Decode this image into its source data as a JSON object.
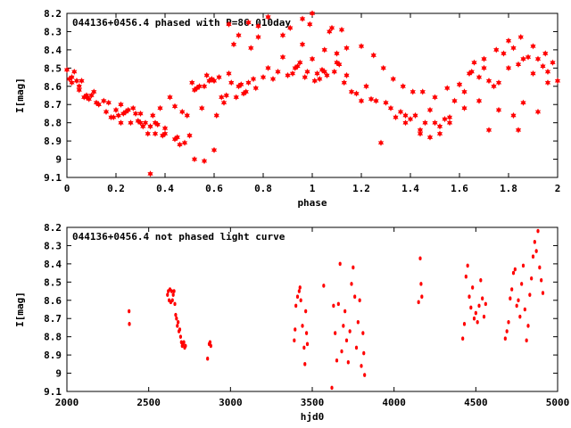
{
  "chart_data": [
    {
      "type": "scatter",
      "title": "044136+0456.4 phased with P=86.010day",
      "xlabel": "phase",
      "ylabel": "I[mag]",
      "xlim": [
        0,
        2
      ],
      "ylim": [
        8.2,
        9.1
      ],
      "y_inverted": true,
      "grid": false,
      "marker_color": "#ff0000",
      "marker": "filled-star",
      "x_ticks": [
        "0",
        "0.2",
        "0.4",
        "0.6",
        "0.8",
        "1",
        "1.2",
        "1.4",
        "1.6",
        "1.8",
        "2"
      ],
      "y_ticks": [
        "8.2",
        "8.3",
        "8.4",
        "8.5",
        "8.6",
        "8.7",
        "8.8",
        "8.9",
        "9",
        "9.1"
      ],
      "series": [
        {
          "x": [
            0.0,
            0.01,
            0.02,
            0.03,
            0.04,
            0.05,
            0.06,
            0.07,
            0.08,
            0.09,
            0.1,
            0.11,
            0.13,
            0.15,
            0.17,
            0.18,
            0.19,
            0.2,
            0.21,
            0.22,
            0.23,
            0.24,
            0.25,
            0.26,
            0.27,
            0.28,
            0.29,
            0.3,
            0.31,
            0.32,
            0.33,
            0.34,
            0.35,
            0.36,
            0.37,
            0.38,
            0.39,
            0.4,
            0.42,
            0.44,
            0.45,
            0.46,
            0.47,
            0.48,
            0.49,
            0.5,
            0.51,
            0.52,
            0.53,
            0.54,
            0.55,
            0.56,
            0.57,
            0.58,
            0.59,
            0.6,
            0.61,
            0.62,
            0.63,
            0.64,
            0.65,
            0.66,
            0.67,
            0.68,
            0.69,
            0.7,
            0.71,
            0.72,
            0.73,
            0.74,
            0.75,
            0.76,
            0.77,
            0.78,
            0.8,
            0.82,
            0.84,
            0.86,
            0.88,
            0.9,
            0.91,
            0.92,
            0.93,
            0.94,
            0.95,
            0.96,
            0.97,
            0.98,
            0.99,
            1.0,
            1.01,
            1.02,
            1.03,
            1.04,
            1.05,
            1.06,
            1.07,
            1.08,
            1.09,
            1.1,
            1.11,
            1.12,
            1.13,
            1.14,
            1.16,
            1.18,
            1.2,
            1.22,
            1.24,
            1.26,
            1.28,
            1.3,
            1.32,
            1.34,
            1.36,
            1.38,
            1.4,
            1.42,
            1.44,
            1.46,
            1.48,
            1.5,
            1.52,
            1.54,
            1.56,
            1.58,
            1.6,
            1.62,
            1.64,
            1.66,
            1.68,
            1.7,
            1.72,
            1.74,
            1.76,
            1.78,
            1.8,
            1.82,
            1.84,
            1.86,
            1.88,
            1.9,
            1.92,
            1.94,
            1.96,
            1.98,
            2.0,
            0.34,
            0.52,
            0.56,
            0.6,
            0.44,
            0.4,
            0.36,
            0.3,
            0.22,
            0.16,
            0.12,
            0.08,
            0.05,
            0.02,
            0.66,
            0.7,
            0.74,
            0.78,
            0.82,
            0.88,
            0.96,
            1.0,
            1.05,
            1.1,
            1.14,
            1.2,
            1.25,
            1.29,
            1.33,
            1.37,
            1.41,
            1.45,
            1.5,
            1.55,
            1.6,
            1.65,
            1.7,
            1.75,
            1.8,
            1.85,
            1.9,
            1.95,
            1.38,
            1.44,
            1.48,
            1.52,
            1.56,
            1.62,
            1.68,
            1.72,
            1.76,
            1.82,
            1.86,
            1.92,
            1.96,
            1.84
          ],
          "y": [
            8.51,
            8.56,
            8.58,
            8.52,
            8.57,
            8.6,
            8.57,
            8.66,
            8.66,
            8.67,
            8.65,
            8.63,
            8.7,
            8.68,
            8.69,
            8.77,
            8.77,
            8.73,
            8.76,
            8.7,
            8.75,
            8.74,
            8.73,
            8.8,
            8.72,
            8.75,
            8.79,
            8.75,
            8.82,
            8.8,
            8.86,
            8.82,
            8.76,
            8.86,
            8.81,
            8.72,
            8.87,
            8.86,
            8.66,
            8.71,
            8.88,
            8.92,
            8.74,
            8.91,
            8.76,
            8.87,
            8.58,
            8.62,
            8.61,
            8.6,
            8.72,
            8.6,
            8.54,
            8.57,
            8.56,
            8.57,
            8.76,
            8.55,
            8.66,
            8.69,
            8.65,
            8.53,
            8.58,
            8.37,
            8.66,
            8.6,
            8.59,
            8.64,
            8.63,
            8.58,
            8.39,
            8.56,
            8.61,
            8.33,
            8.55,
            8.5,
            8.56,
            8.52,
            8.44,
            8.54,
            8.28,
            8.53,
            8.5,
            8.49,
            8.47,
            8.23,
            8.55,
            8.52,
            8.26,
            8.2,
            8.57,
            8.53,
            8.56,
            8.51,
            8.52,
            8.54,
            8.3,
            8.28,
            8.52,
            8.47,
            8.48,
            8.29,
            8.58,
            8.54,
            8.63,
            8.64,
            8.68,
            8.6,
            8.67,
            8.68,
            8.91,
            8.69,
            8.72,
            8.77,
            8.74,
            8.76,
            8.78,
            8.76,
            8.84,
            8.8,
            8.73,
            8.8,
            8.86,
            8.78,
            8.8,
            8.68,
            8.59,
            8.63,
            8.53,
            8.47,
            8.55,
            8.5,
            8.57,
            8.6,
            8.58,
            8.42,
            8.5,
            8.39,
            8.48,
            8.45,
            8.44,
            8.53,
            8.45,
            8.49,
            8.52,
            8.47,
            8.57,
            9.08,
            9.0,
            9.01,
            8.95,
            8.89,
            8.83,
            8.8,
            8.8,
            8.8,
            8.74,
            8.69,
            8.65,
            8.62,
            8.55,
            8.26,
            8.32,
            8.25,
            8.27,
            8.22,
            8.32,
            8.37,
            8.45,
            8.4,
            8.42,
            8.39,
            8.38,
            8.43,
            8.5,
            8.56,
            8.6,
            8.63,
            8.63,
            8.66,
            8.61,
            8.59,
            8.52,
            8.45,
            8.4,
            8.35,
            8.33,
            8.38,
            8.42,
            8.8,
            8.86,
            8.88,
            8.82,
            8.77,
            8.72,
            8.68,
            8.84,
            8.73,
            8.76,
            8.69,
            8.74,
            8.58,
            8.84
          ]
        }
      ]
    },
    {
      "type": "scatter",
      "title": "044136+0456.4 not phased light curve",
      "xlabel": "hjd0",
      "ylabel": "I[mag]",
      "xlim": [
        2000,
        5000
      ],
      "ylim": [
        8.2,
        9.1
      ],
      "y_inverted": true,
      "grid": false,
      "marker_color": "#ff0000",
      "marker": "small-dot",
      "x_ticks": [
        "2000",
        "2500",
        "3000",
        "3500",
        "4000",
        "4500",
        "5000"
      ],
      "y_ticks": [
        "8.2",
        "8.3",
        "8.4",
        "8.5",
        "8.6",
        "8.7",
        "8.8",
        "8.9",
        "9",
        "9.1"
      ],
      "series": [
        {
          "x": [
            2380,
            2382,
            2615,
            2620,
            2625,
            2630,
            2635,
            2640,
            2645,
            2650,
            2655,
            2660,
            2665,
            2670,
            2675,
            2680,
            2685,
            2690,
            2695,
            2700,
            2705,
            2710,
            2715,
            2720,
            2725,
            2860,
            2870,
            2875,
            2880,
            3390,
            3395,
            3400,
            3410,
            3420,
            3425,
            3430,
            3440,
            3450,
            3455,
            3460,
            3465,
            3470,
            3570,
            3620,
            3630,
            3640,
            3650,
            3660,
            3670,
            3680,
            3690,
            3700,
            3710,
            3720,
            3730,
            3740,
            3750,
            3760,
            3770,
            3780,
            3790,
            3800,
            3810,
            3815,
            3820,
            4150,
            4160,
            4165,
            4170,
            4420,
            4430,
            4440,
            4450,
            4460,
            4470,
            4480,
            4490,
            4500,
            4510,
            4520,
            4530,
            4540,
            4550,
            4560,
            4680,
            4690,
            4700,
            4710,
            4720,
            4730,
            4740,
            4750,
            4760,
            4770,
            4780,
            4790,
            4800,
            4810,
            4820,
            4830,
            4840,
            4850,
            4860,
            4870,
            4880,
            4890,
            4900,
            4910
          ],
          "y": [
            8.66,
            8.73,
            8.57,
            8.55,
            8.6,
            8.54,
            8.61,
            8.55,
            8.6,
            8.57,
            8.55,
            8.62,
            8.68,
            8.7,
            8.74,
            8.72,
            8.77,
            8.76,
            8.8,
            8.83,
            8.85,
            8.84,
            8.83,
            8.86,
            8.85,
            8.92,
            8.84,
            8.83,
            8.85,
            8.82,
            8.76,
            8.63,
            8.58,
            8.55,
            8.53,
            8.6,
            8.74,
            8.86,
            8.95,
            8.66,
            8.78,
            8.84,
            8.52,
            9.08,
            8.63,
            8.78,
            8.93,
            8.62,
            8.4,
            8.88,
            8.74,
            8.66,
            8.82,
            8.94,
            8.77,
            8.51,
            8.42,
            8.58,
            8.86,
            8.72,
            8.6,
            8.96,
            8.78,
            8.89,
            9.01,
            8.61,
            8.37,
            8.51,
            8.58,
            8.81,
            8.73,
            8.47,
            8.41,
            8.58,
            8.64,
            8.53,
            8.7,
            8.67,
            8.72,
            8.63,
            8.49,
            8.59,
            8.69,
            8.62,
            8.81,
            8.77,
            8.72,
            8.59,
            8.54,
            8.45,
            8.43,
            8.63,
            8.6,
            8.69,
            8.51,
            8.41,
            8.65,
            8.82,
            8.74,
            8.57,
            8.48,
            8.36,
            8.28,
            8.33,
            8.22,
            8.42,
            8.49,
            8.56
          ]
        }
      ]
    }
  ]
}
